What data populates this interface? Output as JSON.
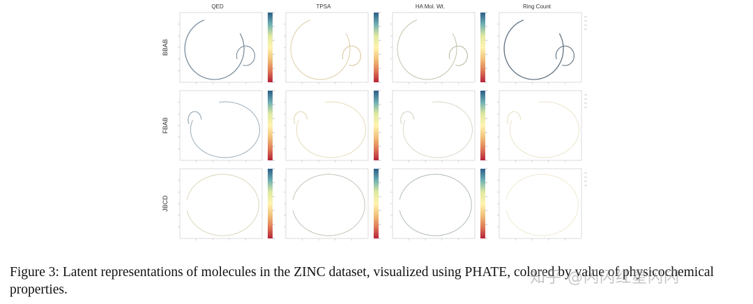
{
  "figure": {
    "columns": [
      "QED",
      "TPSA",
      "HA Mol. Wt.",
      "Ring Count"
    ],
    "rows": [
      "BBAB",
      "FBAB",
      "JBCD"
    ],
    "colorbar_colors": [
      "#2c5d87",
      "#6fb0b4",
      "#dfe9a0",
      "#fff3b0",
      "#f2c27b",
      "#df7b57",
      "#b5233a"
    ]
  },
  "caption": {
    "text": "Figure 3: Latent representations of molecules in the ZINC dataset, visualized using PHATE, colored by value of physicochemical properties."
  },
  "watermark": {
    "text": "知乎 @闪闪红星闪闪"
  }
}
